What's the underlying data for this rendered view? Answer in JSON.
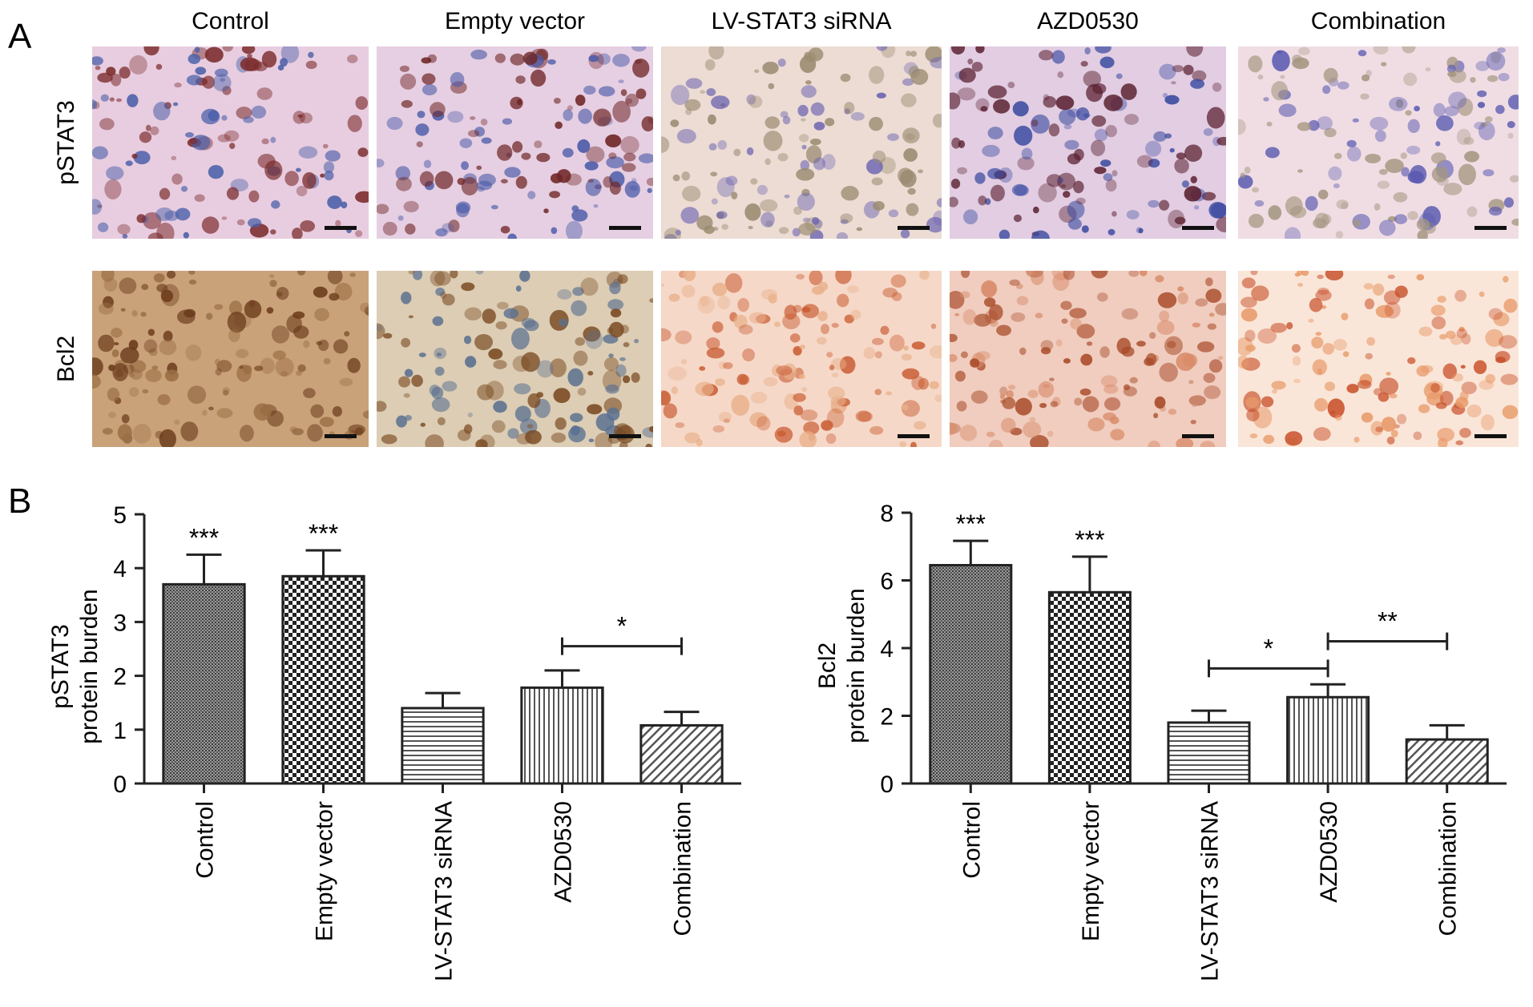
{
  "panel_a": {
    "label": "A",
    "columns": [
      "Control",
      "Empty vector",
      "LV-STAT3 siRNA",
      "AZD0530",
      "Combination"
    ],
    "rows": [
      "pSTAT3",
      "Bcl2"
    ],
    "colors": {
      "pSTAT3": {
        "Control": {
          "bg": "#e8cde0",
          "a": "#7a2a2a",
          "b": "#4a5fa8"
        },
        "Empty vector": {
          "bg": "#e6cfe2",
          "a": "#6e2424",
          "b": "#4a5aa8"
        },
        "LV-STAT3 siRNA": {
          "bg": "#ecdcd4",
          "a": "#9a8a70",
          "b": "#6a62b0"
        },
        "AZD0530": {
          "bg": "#e2cde2",
          "a": "#5a2030",
          "b": "#3a4aa0"
        },
        "Combination": {
          "bg": "#f0dde4",
          "a": "#a49680",
          "b": "#5a5ab0"
        }
      },
      "Bcl2": {
        "Control": {
          "bg": "#c9a27a",
          "a": "#6a3a1a",
          "b": "#9a6e44"
        },
        "Empty vector": {
          "bg": "#dccdb4",
          "a": "#7a4a22",
          "b": "#5a7090"
        },
        "LV-STAT3 siRNA": {
          "bg": "#f6d8c8",
          "a": "#c85a30",
          "b": "#e8b08a"
        },
        "AZD0530": {
          "bg": "#f0cdbf",
          "a": "#a84a28",
          "b": "#d88a68"
        },
        "Combination": {
          "bg": "#fae6d8",
          "a": "#c8502a",
          "b": "#e89a6a"
        }
      }
    }
  },
  "panel_b_label": "B",
  "chart_data": [
    {
      "type": "bar",
      "categories": [
        "Control",
        "Empty vector",
        "LV-STAT3 siRNA",
        "AZD0530",
        "Combination"
      ],
      "values": [
        3.7,
        3.85,
        1.4,
        1.78,
        1.08
      ],
      "errors": [
        0.55,
        0.48,
        0.28,
        0.32,
        0.25
      ],
      "ylabel": [
        "pSTAT3",
        "protein burden"
      ],
      "ylim": [
        0,
        5
      ],
      "yticks": [
        0,
        1,
        2,
        3,
        4,
        5
      ],
      "patterns": [
        "fine-dots",
        "checker",
        "horizontal",
        "vertical",
        "diagonal"
      ],
      "annotations": [
        {
          "category": "Control",
          "text": "***"
        },
        {
          "category": "Empty vector",
          "text": "***"
        }
      ],
      "brackets": [
        {
          "from": "AZD0530",
          "to": "Combination",
          "y": 2.55,
          "text": "*"
        }
      ]
    },
    {
      "type": "bar",
      "categories": [
        "Control",
        "Empty vector",
        "LV-STAT3 siRNA",
        "AZD0530",
        "Combination"
      ],
      "values": [
        6.45,
        5.65,
        1.8,
        2.55,
        1.3
      ],
      "errors": [
        0.72,
        1.05,
        0.35,
        0.38,
        0.42
      ],
      "ylabel": [
        "Bcl2",
        "protein burden"
      ],
      "ylim": [
        0,
        8
      ],
      "yticks": [
        0,
        2,
        4,
        6,
        8
      ],
      "patterns": [
        "fine-dots",
        "checker",
        "horizontal",
        "vertical",
        "diagonal"
      ],
      "annotations": [
        {
          "category": "Control",
          "text": "***"
        },
        {
          "category": "Empty vector",
          "text": "***"
        }
      ],
      "brackets": [
        {
          "from": "LV-STAT3 siRNA",
          "to": "AZD0530",
          "y": 3.4,
          "text": "*"
        },
        {
          "from": "AZD0530",
          "to": "Combination",
          "y": 4.2,
          "text": "**"
        }
      ]
    }
  ]
}
